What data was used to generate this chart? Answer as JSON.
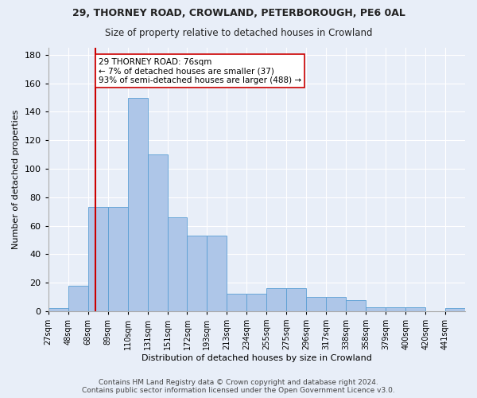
{
  "title1": "29, THORNEY ROAD, CROWLAND, PETERBOROUGH, PE6 0AL",
  "title2": "Size of property relative to detached houses in Crowland",
  "xlabel": "Distribution of detached houses by size in Crowland",
  "ylabel": "Number of detached properties",
  "categories": [
    "27sqm",
    "48sqm",
    "68sqm",
    "89sqm",
    "110sqm",
    "131sqm",
    "151sqm",
    "172sqm",
    "193sqm",
    "213sqm",
    "234sqm",
    "255sqm",
    "275sqm",
    "296sqm",
    "317sqm",
    "338sqm",
    "358sqm",
    "379sqm",
    "400sqm",
    "420sqm",
    "441sqm"
  ],
  "bar_heights": [
    2,
    18,
    73,
    73,
    150,
    110,
    66,
    53,
    53,
    12,
    12,
    16,
    16,
    10,
    10,
    8,
    3,
    3,
    3,
    0,
    2
  ],
  "bar_color": "#aec6e8",
  "bar_edge_color": "#5a9fd4",
  "background_color": "#e8eef8",
  "grid_color": "#ffffff",
  "vline_color": "#cc0000",
  "annotation_text": "29 THORNEY ROAD: 76sqm\n← 7% of detached houses are smaller (37)\n93% of semi-detached houses are larger (488) →",
  "annotation_box_color": "#ffffff",
  "annotation_box_edge": "#cc0000",
  "ylim": [
    0,
    185
  ],
  "yticks": [
    0,
    20,
    40,
    60,
    80,
    100,
    120,
    140,
    160,
    180
  ],
  "footer": "Contains HM Land Registry data © Crown copyright and database right 2024.\nContains public sector information licensed under the Open Government Licence v3.0."
}
